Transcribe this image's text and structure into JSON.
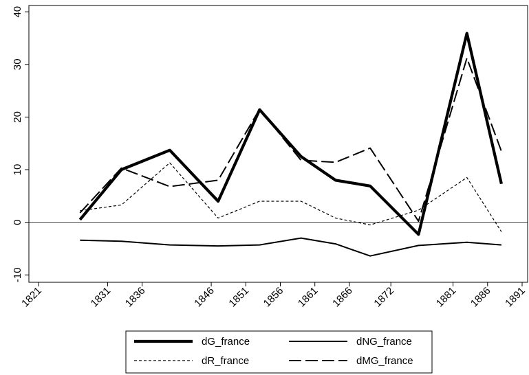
{
  "chart_data": {
    "type": "line",
    "title": "",
    "xlabel": "",
    "ylabel": "",
    "x": [
      1827,
      1833,
      1840,
      1847,
      1853,
      1859,
      1864,
      1869,
      1876,
      1883,
      1888
    ],
    "xticks": [
      1821,
      1831,
      1836,
      1846,
      1851,
      1856,
      1861,
      1866,
      1872,
      1881,
      1886,
      1891
    ],
    "xlim": [
      1821,
      1891
    ],
    "yticks": [
      -10,
      0,
      10,
      20,
      30,
      40
    ],
    "ylim": [
      -10,
      40
    ],
    "grid": false,
    "zero_line": true,
    "legend_position": "bottom",
    "series": [
      {
        "name": "dG_france",
        "style": "thick-solid",
        "values": [
          0.5,
          10.0,
          13.7,
          4.0,
          21.4,
          12.5,
          8.0,
          6.9,
          -2.3,
          35.9,
          7.3
        ]
      },
      {
        "name": "dNG_france",
        "style": "solid",
        "values": [
          -3.4,
          -3.6,
          -4.3,
          -4.5,
          -4.3,
          -3.0,
          -4.1,
          -6.4,
          -4.4,
          -3.8,
          -4.3
        ]
      },
      {
        "name": "dR_france",
        "style": "short-dash",
        "values": [
          2.2,
          3.3,
          11.3,
          0.8,
          4.0,
          4.0,
          0.8,
          -0.5,
          2.3,
          8.5,
          -1.8
        ]
      },
      {
        "name": "dMG_france",
        "style": "long-dash",
        "values": [
          1.8,
          10.3,
          6.8,
          8.0,
          21.5,
          11.8,
          11.4,
          14.1,
          0.2,
          31.2,
          13.5
        ]
      }
    ]
  }
}
